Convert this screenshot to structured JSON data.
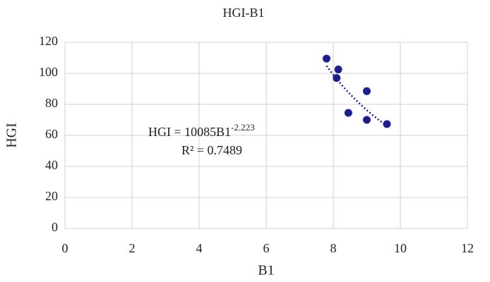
{
  "chart_data": {
    "type": "scatter",
    "title": "HGI-B1",
    "x_label": "B1",
    "y_label": "HGI",
    "series": [
      {
        "name": "HGI",
        "color": "#1c1f8a",
        "x": [
          7.8,
          8.15,
          8.1,
          8.45,
          9.0,
          9.0,
          9.6
        ],
        "values": [
          109.5,
          102.5,
          97,
          74.5,
          88.5,
          70,
          67.3
        ]
      }
    ],
    "xlim": [
      0,
      12
    ],
    "xticks": [
      0,
      2,
      4,
      6,
      8,
      10,
      12
    ],
    "ylim": [
      0,
      120
    ],
    "yticks": [
      0,
      20,
      40,
      60,
      80,
      100,
      120
    ],
    "grid": true,
    "trendline": {
      "type": "power",
      "coefficient": 10085,
      "exponent": -2.223,
      "equation": "HGI = 10085B1",
      "equation_exponent": "-2.223",
      "r_squared": "R² = 0.7489"
    }
  }
}
